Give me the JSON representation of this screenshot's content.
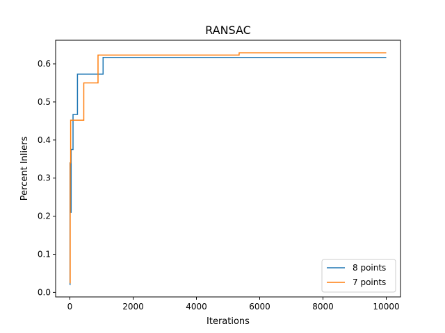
{
  "chart_data": {
    "type": "line",
    "title": "RANSAC",
    "xlabel": "Iterations",
    "ylabel": "Percent Inliers",
    "xlim": [
      -450,
      10450
    ],
    "ylim": [
      -0.012,
      0.662
    ],
    "xticks": [
      0,
      2000,
      4000,
      6000,
      8000,
      10000
    ],
    "yticks": [
      0.0,
      0.1,
      0.2,
      0.3,
      0.4,
      0.5,
      0.6
    ],
    "grid": false,
    "legend_position": "bottom-right",
    "series": [
      {
        "name": "8 points",
        "color": "#1f77b4",
        "step": true,
        "x": [
          0,
          5,
          20,
          40,
          100,
          240,
          1050,
          10000
        ],
        "y": [
          0.02,
          0.34,
          0.21,
          0.375,
          0.467,
          0.573,
          0.617,
          0.617
        ]
      },
      {
        "name": "7 points",
        "color": "#ff7f0e",
        "step": true,
        "x": [
          0,
          10,
          25,
          440,
          890,
          5350,
          10000
        ],
        "y": [
          0.025,
          0.34,
          0.452,
          0.55,
          0.623,
          0.629,
          0.629
        ]
      }
    ]
  }
}
